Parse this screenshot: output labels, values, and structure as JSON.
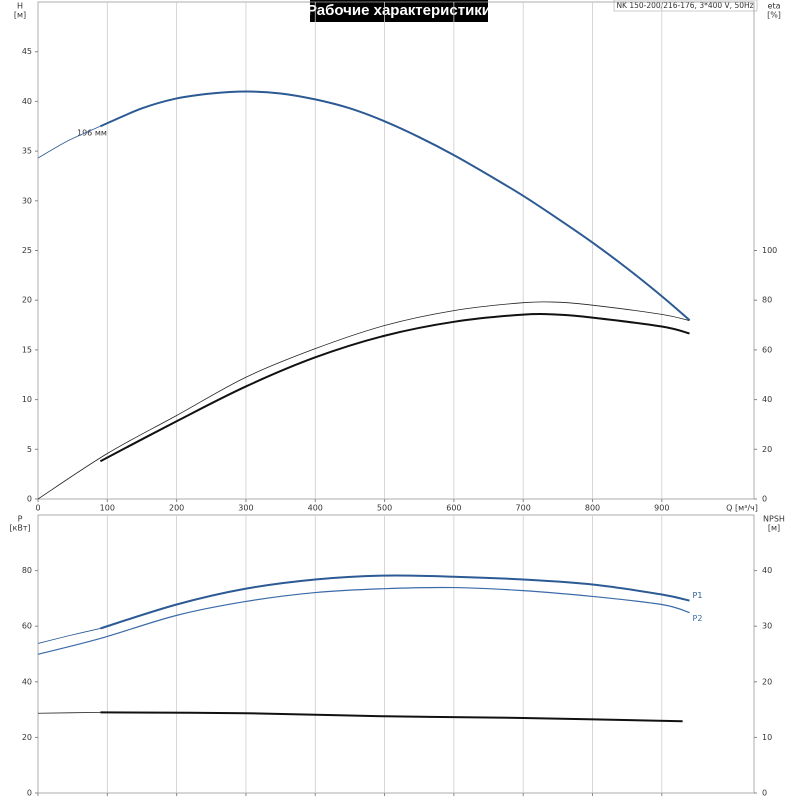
{
  "title": "Рабочие характеристики",
  "subtitle": "NK 150-200/216-176, 3*400 V, 50Hz",
  "chart_data": [
    {
      "type": "line",
      "xlabel": "Q [м³/ч]",
      "ylabel": "H",
      "yunit": "[м]",
      "y2label": "eta",
      "y2unit": "[%]",
      "annotation": "196 мм",
      "xlim": [
        0,
        1033
      ],
      "xticks": [
        0,
        100,
        200,
        300,
        400,
        500,
        600,
        700,
        800,
        900
      ],
      "xtick_labels": true,
      "ylim": [
        0,
        50
      ],
      "yticks": [
        0,
        5,
        10,
        15,
        20,
        25,
        30,
        35,
        40,
        45
      ],
      "y2lim": [
        0,
        200
      ],
      "y2ticks": [
        0,
        20,
        40,
        60,
        80,
        100
      ],
      "grid": true,
      "series": [
        {
          "color": "#2c5a94",
          "width": 0.8,
          "x": [
            0,
            45,
            90
          ],
          "values": [
            34.3,
            36.1,
            37.5
          ]
        },
        {
          "color": "#2c5a94",
          "width": 2,
          "x": [
            90,
            150,
            200,
            250,
            300,
            350,
            400,
            450,
            500,
            550,
            600,
            650,
            700,
            750,
            800,
            850,
            900,
            940
          ],
          "values": [
            37.5,
            39.3,
            40.3,
            40.8,
            41.0,
            40.8,
            40.2,
            39.3,
            38.0,
            36.4,
            34.6,
            32.6,
            30.5,
            28.2,
            25.8,
            23.2,
            20.4,
            18.0
          ]
        },
        {
          "color": "#222222",
          "width": 0.8,
          "axis": "y2",
          "x": [
            0,
            100,
            200,
            300,
            400,
            500,
            600,
            700,
            750,
            800,
            900,
            940
          ],
          "values": [
            0,
            18.3,
            33.6,
            49,
            60.5,
            69.8,
            75.8,
            79,
            79.2,
            78,
            74.3,
            71.8
          ]
        },
        {
          "color": "#111111",
          "width": 2,
          "axis": "y2",
          "x": [
            90,
            200,
            300,
            400,
            500,
            600,
            700,
            750,
            800,
            900,
            940
          ],
          "values": [
            15.2,
            31.3,
            45.3,
            57,
            65.7,
            71.3,
            74.2,
            74.2,
            73,
            69.4,
            66.6
          ]
        }
      ]
    },
    {
      "type": "line",
      "ylabel": "P",
      "yunit": "[кВт]",
      "y2label": "NPSH",
      "y2unit": "[м]",
      "xlim": [
        0,
        1033
      ],
      "xticks": [
        0,
        100,
        200,
        300,
        400,
        500,
        600,
        700,
        800,
        900
      ],
      "xtick_labels": false,
      "ylim": [
        0,
        100
      ],
      "yticks": [
        0,
        20,
        40,
        60,
        80
      ],
      "y2lim": [
        0,
        50
      ],
      "y2ticks": [
        0,
        10,
        20,
        30,
        40
      ],
      "grid": true,
      "series": [
        {
          "color": "#2c5a94",
          "width": 0.8,
          "x": [
            0,
            45,
            90
          ],
          "values": [
            53.8,
            56.6,
            59.2
          ]
        },
        {
          "name": "P1",
          "color": "#2c5a94",
          "width": 2,
          "x": [
            90,
            200,
            300,
            400,
            500,
            600,
            700,
            800,
            900,
            940
          ],
          "values": [
            59.2,
            67.8,
            73.5,
            76.8,
            78.2,
            77.8,
            76.8,
            75,
            71.4,
            69.2
          ]
        },
        {
          "name": "P2",
          "color": "#3a6aa8",
          "width": 1.2,
          "x": [
            0,
            90,
            200,
            300,
            400,
            500,
            600,
            700,
            800,
            900,
            940
          ],
          "values": [
            49.9,
            55.6,
            63.9,
            68.9,
            72.1,
            73.5,
            73.9,
            72.8,
            70.7,
            67.8,
            64.9
          ]
        },
        {
          "color": "#222222",
          "width": 0.8,
          "axis": "y2",
          "x": [
            0,
            90
          ],
          "values": [
            14.35,
            14.5
          ]
        },
        {
          "color": "#111111",
          "width": 2,
          "axis": "y2",
          "x": [
            90,
            300,
            500,
            700,
            930
          ],
          "values": [
            14.5,
            14.35,
            13.8,
            13.5,
            12.9
          ]
        }
      ]
    }
  ]
}
